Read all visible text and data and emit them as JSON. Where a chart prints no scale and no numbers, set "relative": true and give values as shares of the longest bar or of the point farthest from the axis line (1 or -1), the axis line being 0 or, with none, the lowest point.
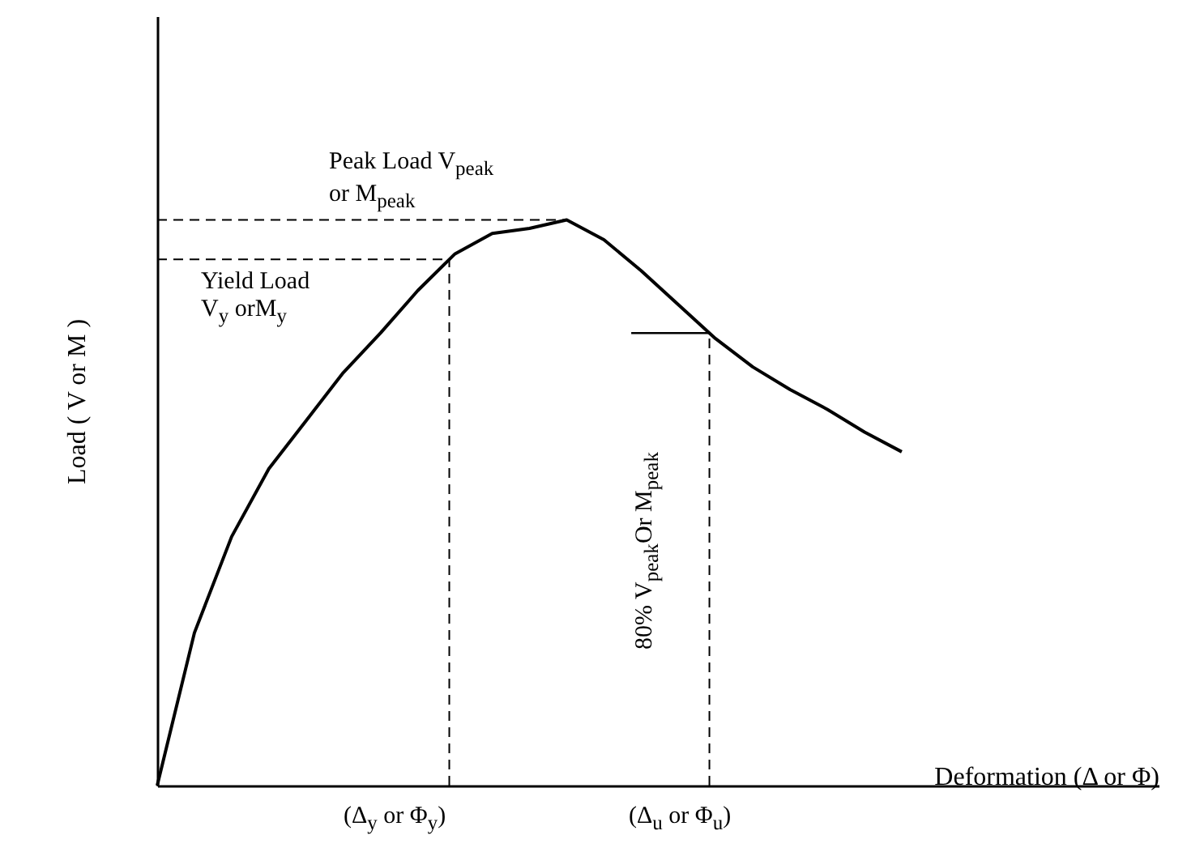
{
  "chart_data": {
    "type": "line",
    "relative": true,
    "xlabel": "Deformation (Δ or Φ)",
    "ylabel": "Load ( V or M )",
    "categories": [
      null,
      null,
      null,
      null,
      null,
      null,
      null,
      null,
      null,
      null,
      null,
      null,
      null,
      null,
      null,
      null,
      null,
      null,
      null,
      null,
      null
    ],
    "series": [
      {
        "color": "#000000",
        "values": [
          0,
          0.27,
          0.44,
          0.56,
          0.645,
          0.73,
          0.8,
          0.875,
          0.94,
          0.976,
          0.985,
          1,
          0.965,
          0.91,
          0.85,
          0.79,
          0.74,
          0.7,
          0.665,
          0.625,
          0.59
        ]
      }
    ],
    "ref_lines": [
      {
        "axis": "y",
        "value": 1,
        "line_style": "dashed"
      },
      {
        "axis": "y",
        "value": 0.93,
        "line_style": "dashed"
      },
      {
        "axis": "y",
        "value": 0.8,
        "line_style": "solid"
      }
    ],
    "annotations": [
      "Peak Load V$_{peak}$\nor M$_{peak}$",
      "Yield Load\nV$_{y}$ orM$_{y}$",
      "80% V$_{peak}$Or M$_{peak}$",
      "(Δ$_{y}$ or  Φ$_{y}$)",
      "(Δ$_{u}$ or  Φ$_{u}$)"
    ],
    "grid": false,
    "marker": "none",
    "line_style": "solid"
  }
}
